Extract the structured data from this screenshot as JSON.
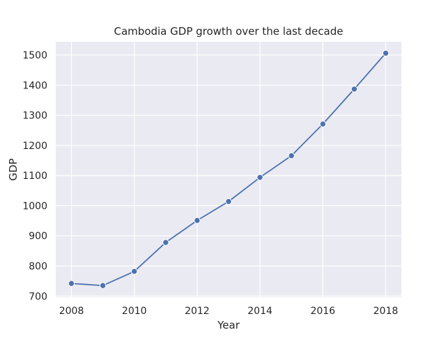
{
  "chart_data": {
    "type": "line",
    "title": "Cambodia GDP growth over the last decade",
    "xlabel": "Year",
    "ylabel": "GDP",
    "x": [
      2008,
      2009,
      2010,
      2011,
      2012,
      2013,
      2014,
      2015,
      2016,
      2017,
      2018
    ],
    "series": [
      {
        "values": [
          742,
          735,
          782,
          878,
          951,
          1014,
          1094,
          1166,
          1271,
          1387,
          1506
        ],
        "color": "#4c72b0",
        "marker": "circle"
      }
    ],
    "xticks": [
      "2008",
      "2010",
      "2012",
      "2014",
      "2016",
      "2018"
    ],
    "yticks": [
      "700",
      "800",
      "900",
      "1000",
      "1100",
      "1200",
      "1300",
      "1400",
      "1500"
    ],
    "xlim": [
      2007.5,
      2018.5
    ],
    "ylim": [
      696,
      1544
    ],
    "grid": true,
    "style": {
      "plot_background": "#eaeaf2",
      "grid_color": "#ffffff"
    }
  }
}
